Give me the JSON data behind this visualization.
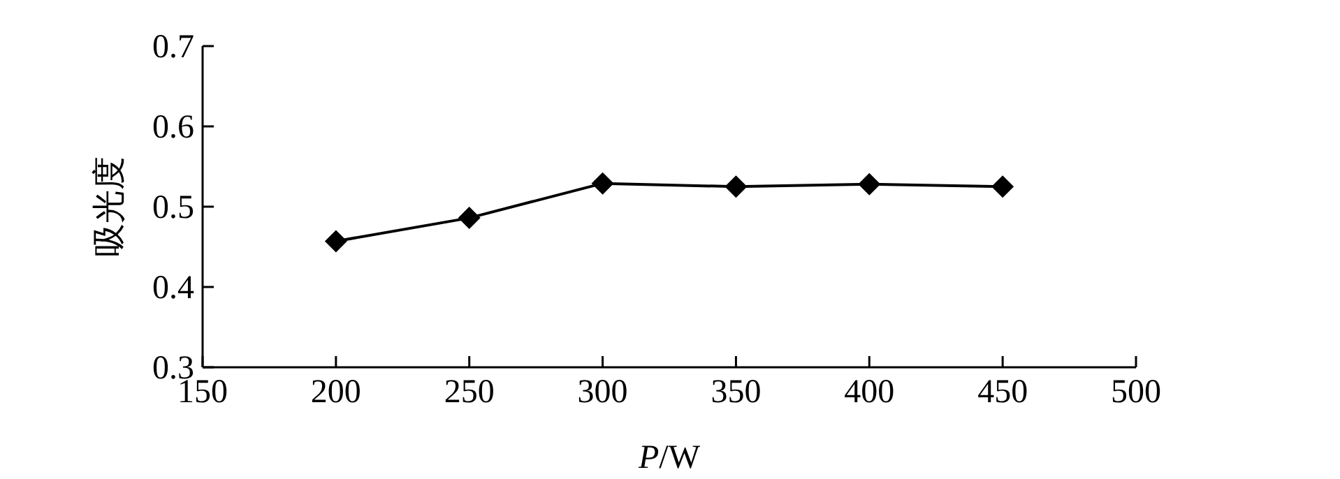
{
  "chart_data": {
    "type": "line",
    "xlabel": "*P*/W",
    "ylabel": "吸光度",
    "x": [
      200,
      250,
      300,
      350,
      400,
      450
    ],
    "series": [
      {
        "color": "#000000",
        "values": [
          0.457,
          0.486,
          0.529,
          0.525,
          0.528,
          0.525
        ]
      }
    ],
    "xlim": [
      150,
      500
    ],
    "xticks": [
      150,
      200,
      250,
      300,
      350,
      400,
      450,
      500
    ],
    "ylim": [
      0.3,
      0.7
    ],
    "yticks": [
      0.3,
      0.4,
      0.5,
      0.6,
      0.7
    ],
    "marker": "diamond",
    "line_style": "solid"
  }
}
